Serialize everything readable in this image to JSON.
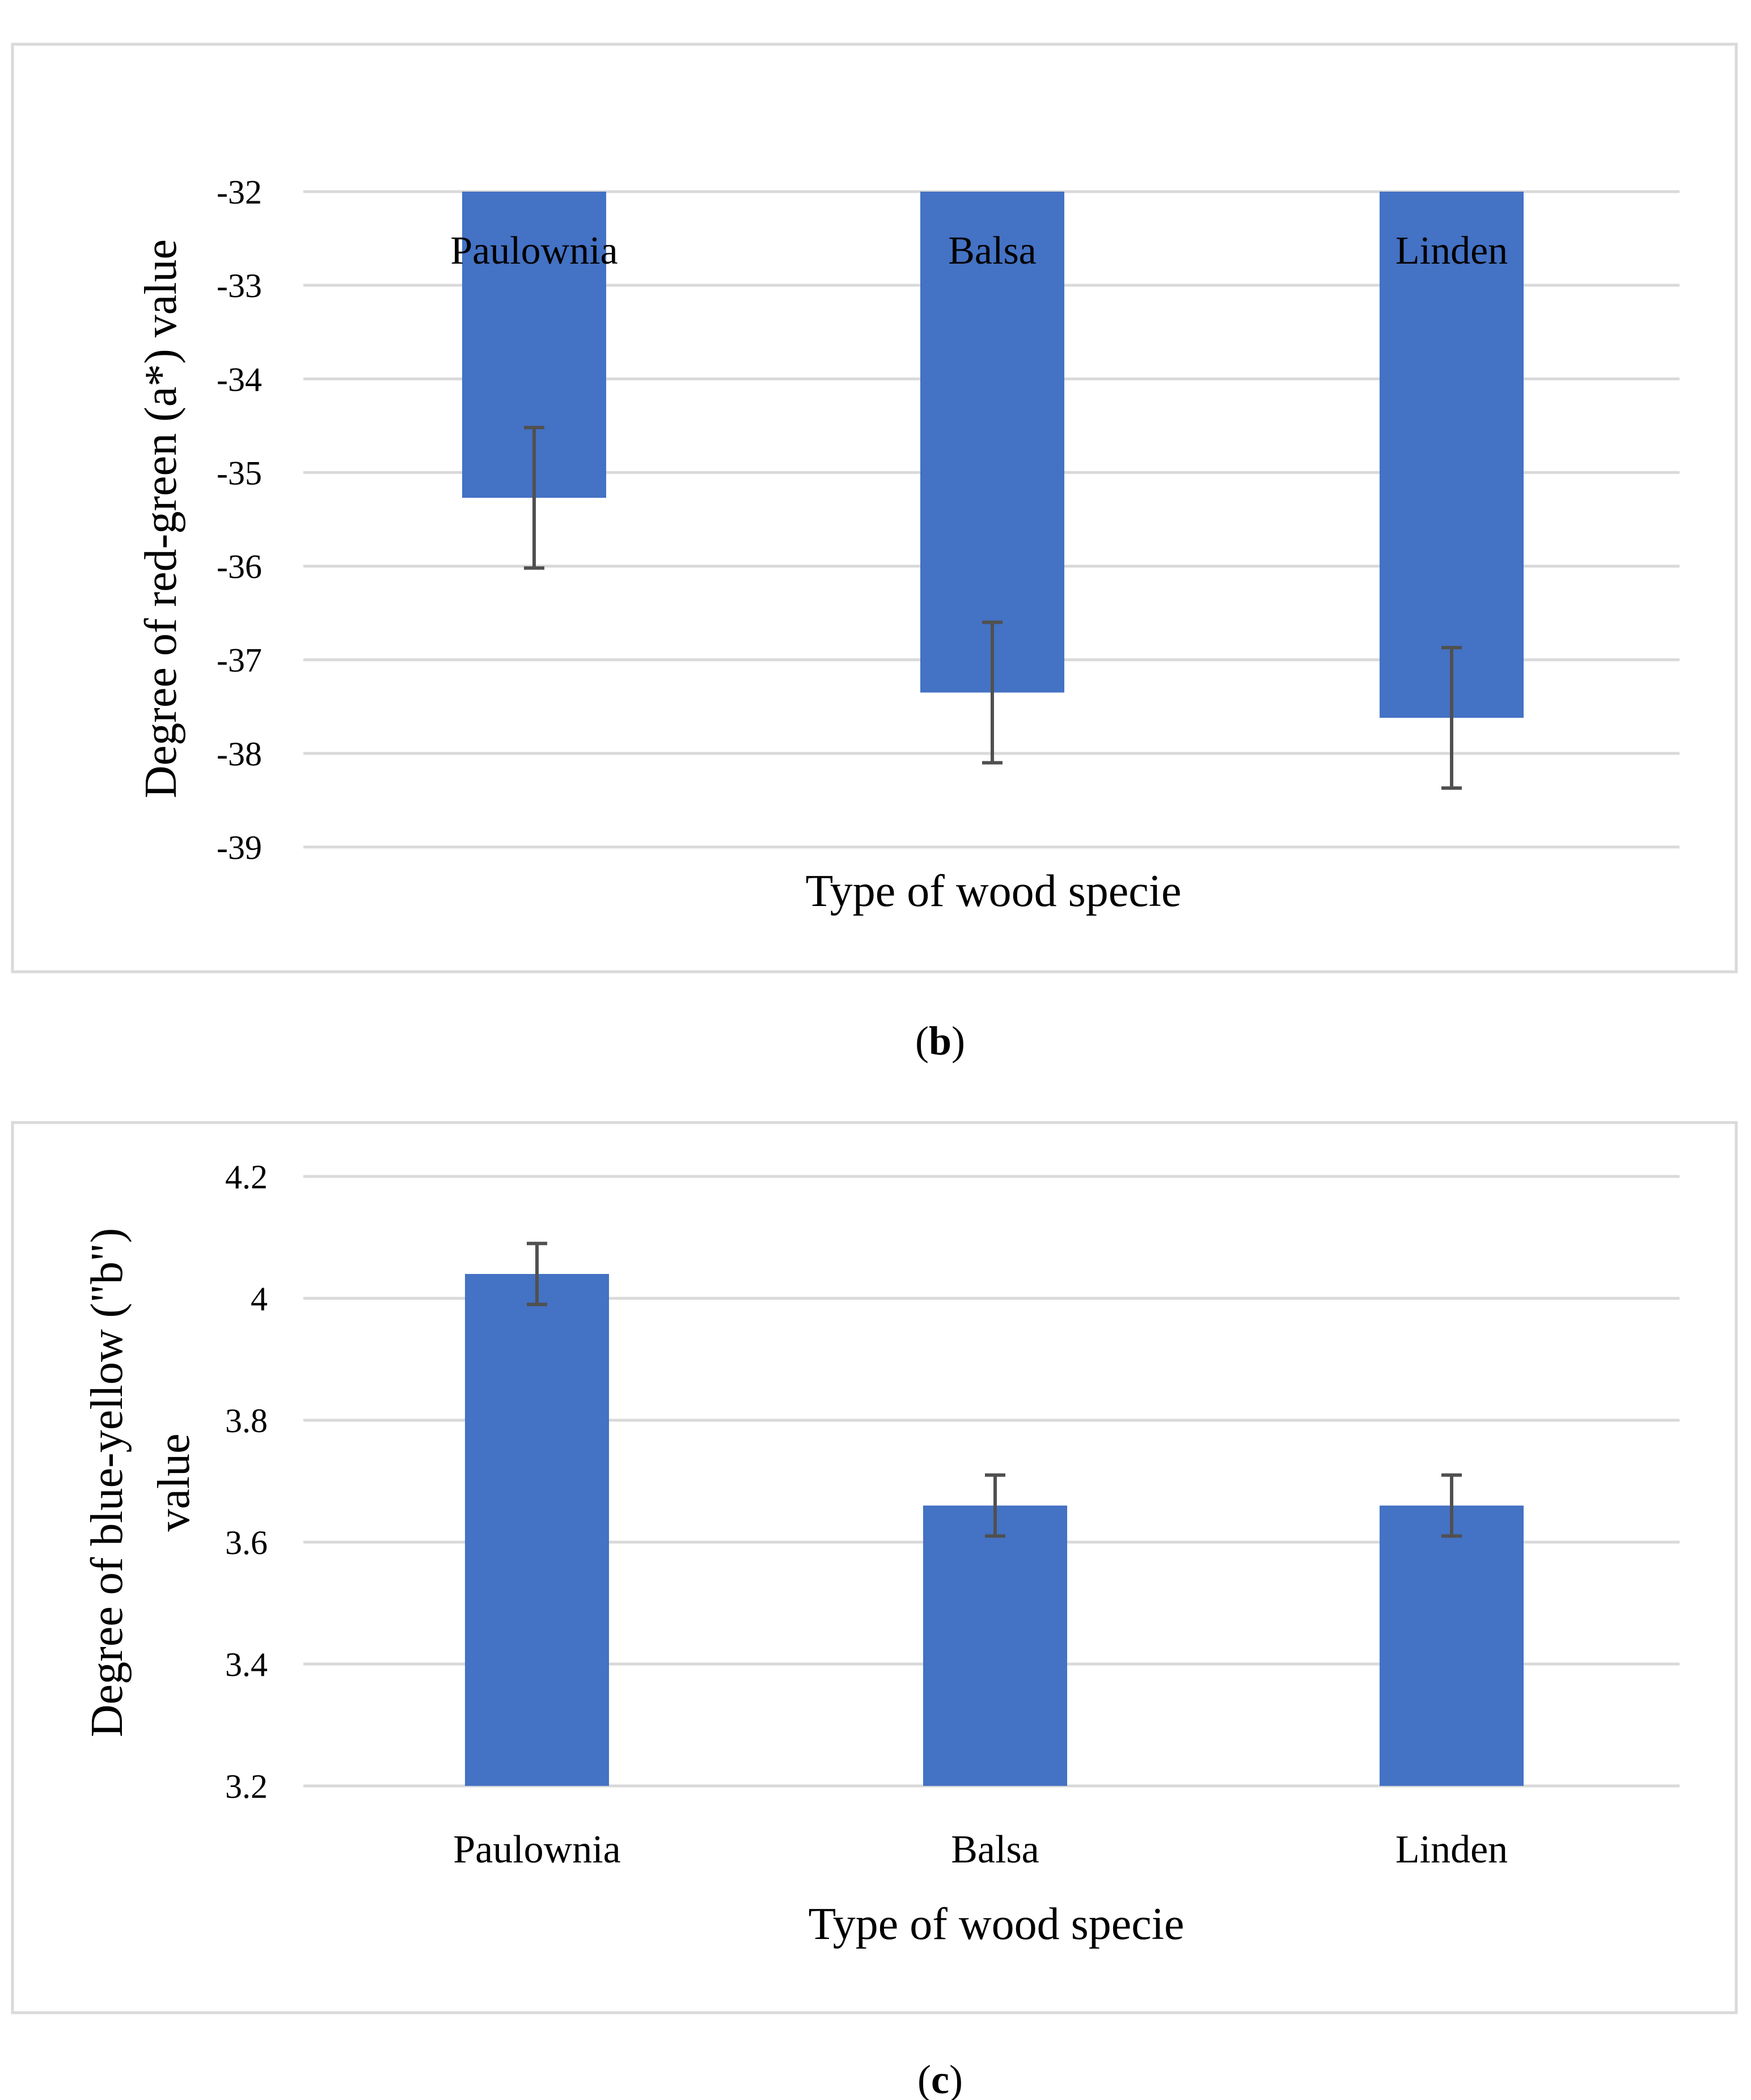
{
  "chart_data": [
    {
      "type": "bar",
      "panel_label": "b",
      "title": "",
      "xlabel": "Type of wood specie",
      "ylabel": "Degree of red-green (a*) value",
      "categories": [
        "Paulownia",
        "Balsa",
        "Linden"
      ],
      "values": [
        -35.27,
        -37.35,
        -37.62
      ],
      "error": [
        0.75,
        0.75,
        0.75
      ],
      "ylim": [
        -39,
        -32
      ],
      "yticks": [
        -32,
        -33,
        -34,
        -35,
        -36,
        -37,
        -38,
        -39
      ],
      "ytick_labels": [
        "-32",
        "-33",
        "-34",
        "-35",
        "-36",
        "-37",
        "-38",
        "-39"
      ],
      "grid": true,
      "category_labels_position": "inside-top",
      "color": "#4472c4"
    },
    {
      "type": "bar",
      "panel_label": "c",
      "title": "",
      "xlabel": "Type of wood specie",
      "ylabel": "Degree of blue-yellow (\"b\") value",
      "ylabel_lines": [
        "Degree of blue-yellow (\"b\")",
        "value"
      ],
      "categories": [
        "Paulownia",
        "Balsa",
        "Linden"
      ],
      "values": [
        4.04,
        3.66,
        3.66
      ],
      "error": [
        0.05,
        0.05,
        0.05
      ],
      "ylim": [
        3.2,
        4.2
      ],
      "yticks": [
        3.2,
        3.4,
        3.6,
        3.8,
        4,
        4.2
      ],
      "ytick_labels": [
        "3.2",
        "3.4",
        "3.6",
        "3.8",
        "4",
        "4.2"
      ],
      "grid": true,
      "category_labels_position": "below",
      "color": "#4472c4"
    }
  ]
}
